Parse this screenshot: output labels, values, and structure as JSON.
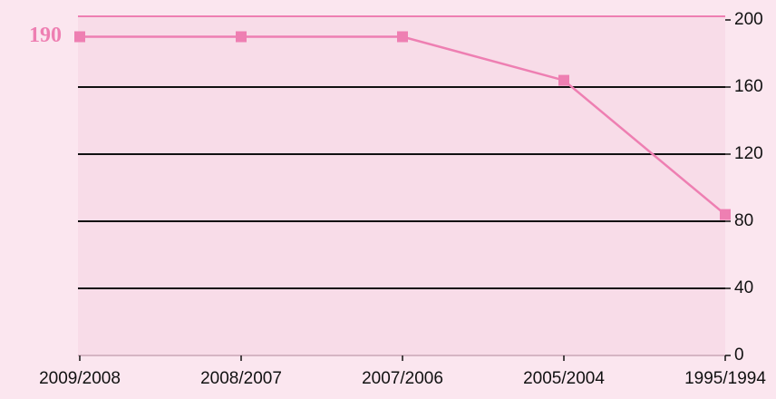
{
  "chart_data": {
    "type": "line",
    "categories": [
      "2009/2008",
      "2008/2007",
      "2007/2006",
      "2005/2004",
      "1995/1994"
    ],
    "values": [
      190,
      190,
      190,
      164,
      84
    ],
    "color": "#ee7fb2",
    "ylim": [
      0,
      200
    ],
    "yticks": [
      0,
      40,
      80,
      120,
      160,
      200
    ],
    "grid": true,
    "y_axis_side": "right",
    "labeled_points": [
      0
    ]
  }
}
